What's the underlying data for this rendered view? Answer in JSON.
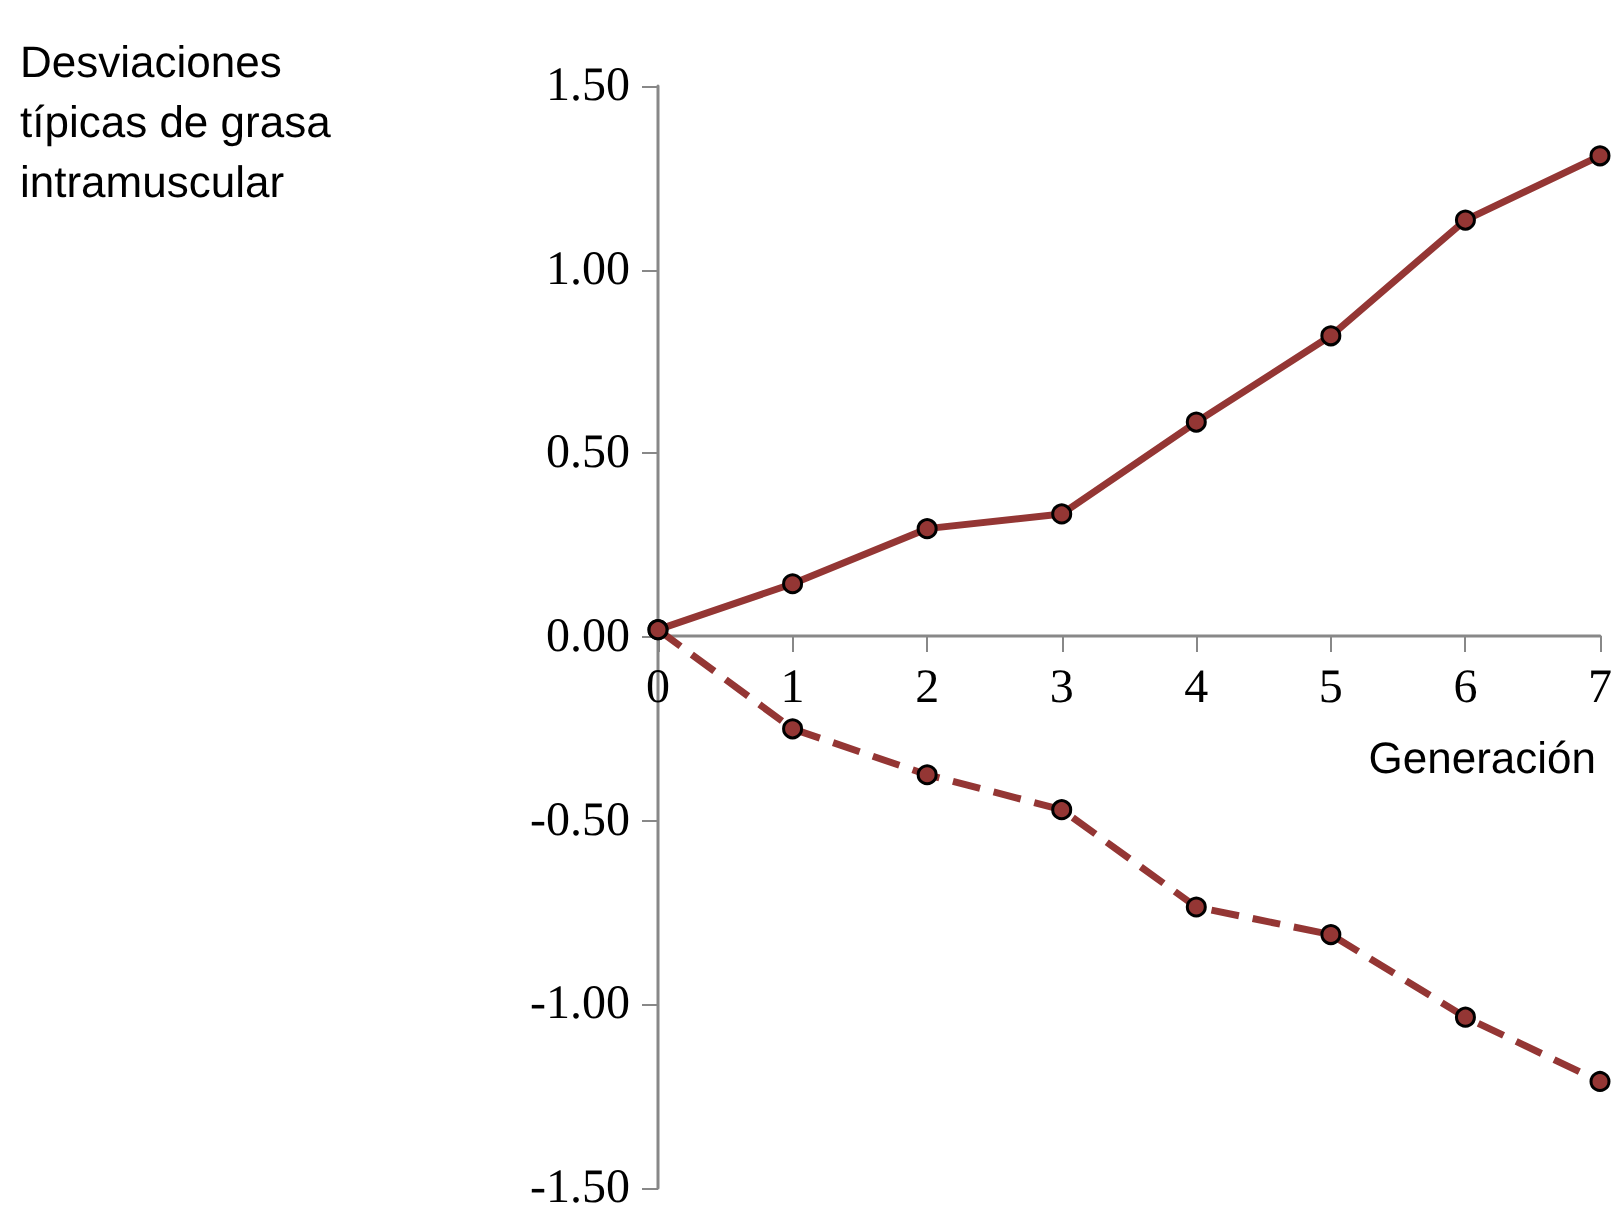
{
  "chart_data": {
    "type": "line",
    "ylabel": "Desviaciones típicas de grasa intramuscular",
    "xlabel": "Generación",
    "x": [
      0,
      1,
      2,
      3,
      4,
      5,
      6,
      7
    ],
    "series": [
      {
        "color": "#943634",
        "line_style": "solid",
        "values": [
          0.02,
          0.145,
          0.295,
          0.335,
          0.585,
          0.82,
          1.135,
          1.31
        ]
      },
      {
        "color": "#943634",
        "line_style": "dashed",
        "values": [
          0.02,
          -0.25,
          -0.375,
          -0.47,
          -0.735,
          -0.81,
          -1.035,
          -1.21
        ]
      }
    ],
    "xlim": [
      0,
      7
    ],
    "xticks": [
      0,
      1,
      2,
      3,
      4,
      5,
      6,
      7
    ],
    "ylim": [
      -1.5,
      1.5
    ],
    "yticks": [
      {
        "value": -1.5,
        "label": "-1.50"
      },
      {
        "value": -1,
        "label": "-1.00"
      },
      {
        "value": -0.5,
        "label": "-0.50"
      },
      {
        "value": 0,
        "label": "0.00"
      },
      {
        "value": 0.5,
        "label": "0.50"
      },
      {
        "value": 1,
        "label": "1.00"
      },
      {
        "value": 1.5,
        "label": "1.50"
      }
    ],
    "grid": false,
    "marker": "circle"
  }
}
